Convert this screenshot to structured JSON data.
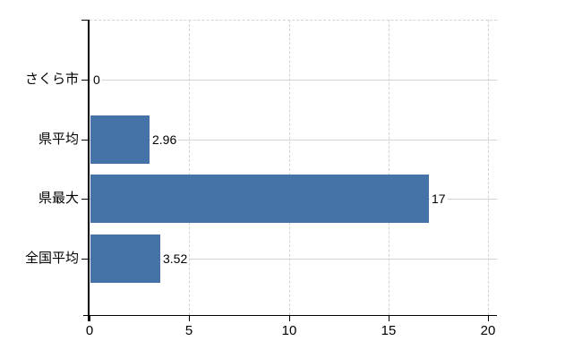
{
  "chart_data": {
    "type": "bar",
    "orientation": "horizontal",
    "title": "",
    "xlabel": "",
    "ylabel": "",
    "categories": [
      "さくら市",
      "県平均",
      "県最大",
      "全国平均"
    ],
    "values": [
      0,
      2.96,
      17,
      3.52
    ],
    "value_labels": [
      "0",
      "2.96",
      "17",
      "3.52"
    ],
    "xlim": [
      0,
      20
    ],
    "xticks": [
      0,
      5,
      10,
      15,
      20
    ],
    "xtick_labels": [
      "0",
      "5",
      "10",
      "15",
      "20"
    ],
    "grid": true,
    "legend_position": "none",
    "colors": {
      "bar": "#4572a7",
      "grid_vertical": "#d3d3d3",
      "grid_horizontal": "#cfd5cf",
      "axis": "#000000",
      "text": "#000000",
      "background": "#ffffff"
    }
  }
}
